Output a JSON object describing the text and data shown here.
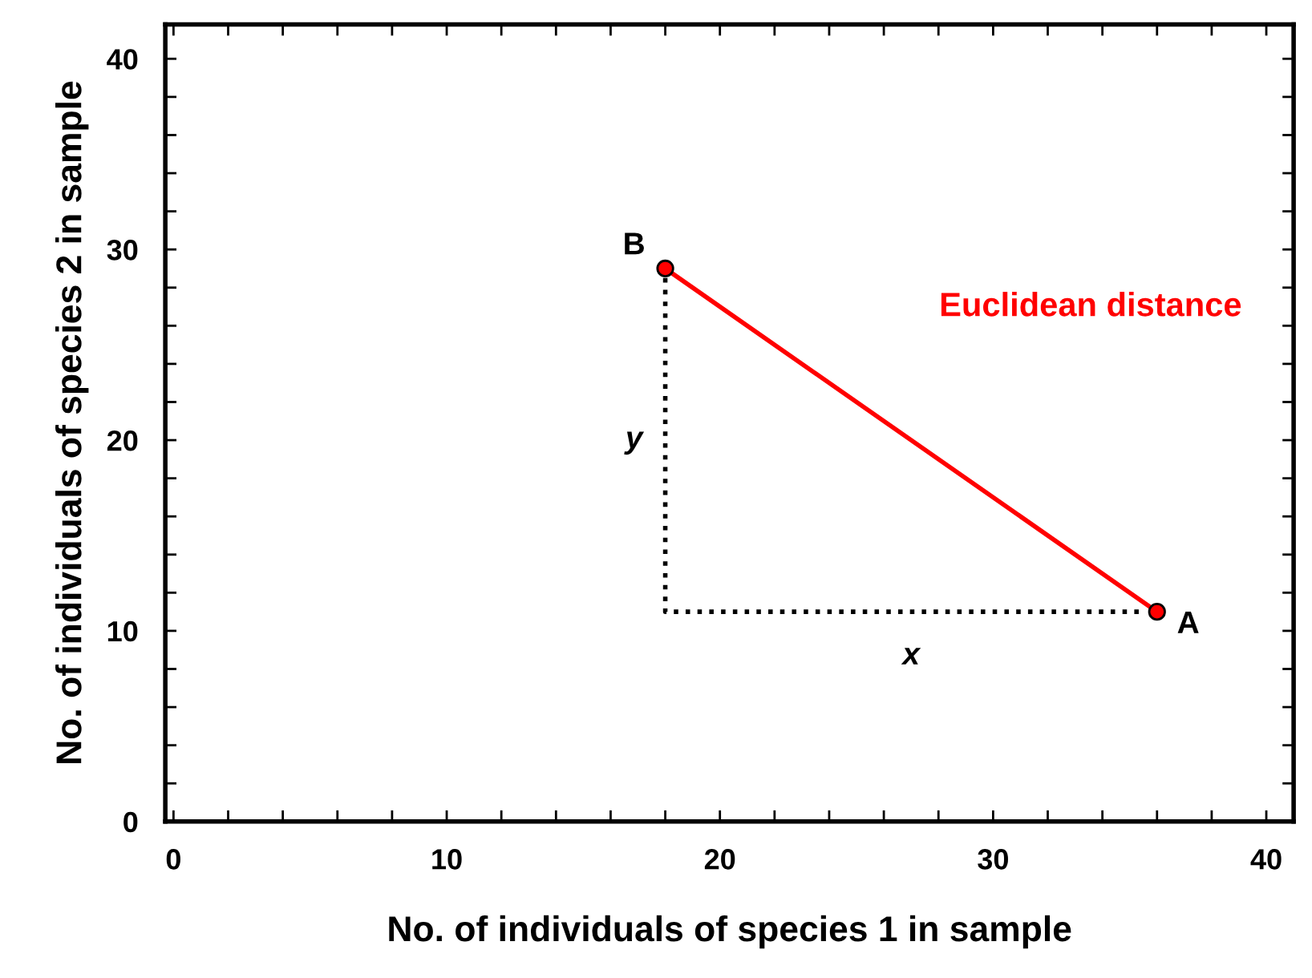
{
  "chart_data": {
    "type": "line",
    "xlabel": "No. of individuals of species 1 in sample",
    "ylabel": "No. of individuals of species 2 in sample",
    "xlim": [
      -0.3,
      41
    ],
    "ylim": [
      0,
      41.8
    ],
    "xticks": [
      0,
      {
        "value": 2,
        "label": null
      },
      {
        "value": 4,
        "label": null
      },
      {
        "value": 6,
        "label": null
      },
      {
        "value": 8,
        "label": null
      },
      10,
      {
        "value": 12,
        "label": null
      },
      {
        "value": 14,
        "label": null
      },
      {
        "value": 16,
        "label": null
      },
      {
        "value": 18,
        "label": null
      },
      20,
      {
        "value": 22,
        "label": null
      },
      {
        "value": 24,
        "label": null
      },
      {
        "value": 26,
        "label": null
      },
      {
        "value": 28,
        "label": null
      },
      30,
      {
        "value": 32,
        "label": null
      },
      {
        "value": 34,
        "label": null
      },
      {
        "value": 36,
        "label": null
      },
      {
        "value": 38,
        "label": null
      },
      40
    ],
    "yticks": [
      0,
      {
        "value": 2,
        "label": null
      },
      {
        "value": 4,
        "label": null
      },
      {
        "value": 6,
        "label": null
      },
      {
        "value": 8,
        "label": null
      },
      10,
      {
        "value": 12,
        "label": null
      },
      {
        "value": 14,
        "label": null
      },
      {
        "value": 16,
        "label": null
      },
      {
        "value": 18,
        "label": null
      },
      20,
      {
        "value": 22,
        "label": null
      },
      {
        "value": 24,
        "label": null
      },
      {
        "value": 26,
        "label": null
      },
      {
        "value": 28,
        "label": null
      },
      30,
      {
        "value": 32,
        "label": null
      },
      {
        "value": 34,
        "label": null
      },
      {
        "value": 36,
        "label": null
      },
      {
        "value": 38,
        "label": null
      },
      40
    ],
    "grid": false,
    "series": [
      {
        "x": [
          36,
          18
        ],
        "values": [
          11,
          29
        ],
        "color": "#ff0000",
        "line_style": "solid",
        "marker": "circle"
      },
      {
        "x": [
          18,
          18,
          35.5
        ],
        "values": [
          28.5,
          11,
          11
        ],
        "color": "#000000",
        "line_style": "dotted"
      }
    ],
    "annotations": [
      {
        "text": "A",
        "x": 36,
        "y": 11
      },
      {
        "text": "B",
        "x": 18,
        "y": 29
      },
      {
        "text": "x",
        "x": 27,
        "y": 11
      },
      {
        "text": "y",
        "x": 18,
        "y": 20
      },
      "Euclidean distance"
    ]
  }
}
